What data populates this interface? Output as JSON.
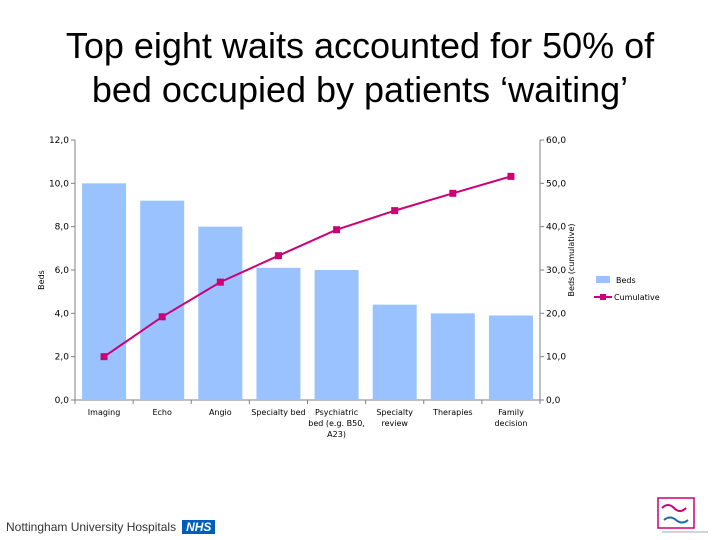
{
  "slide": {
    "title_line1": "Top eight waits accounted for 50% of",
    "title_line2": "bed occupied by patients ‘waiting’"
  },
  "footer": {
    "organisation": "Nottingham University Hospitals",
    "nhs_badge": "NHS"
  },
  "colors": {
    "bars": "#99C2FF",
    "cumulative": "#CC0077",
    "axis": "#808080"
  },
  "chart_data": {
    "type": "bar",
    "categories": [
      [
        "Imaging"
      ],
      [
        "Echo"
      ],
      [
        "Angio"
      ],
      [
        "Specialty bed"
      ],
      [
        "Psychiatric",
        "bed (e.g. B50,",
        "A23)"
      ],
      [
        "Specialty",
        "review"
      ],
      [
        "Therapies"
      ],
      [
        "Family",
        "decision"
      ]
    ],
    "series": [
      {
        "name": "Beds",
        "type": "bar",
        "axis": "left",
        "values": [
          10.0,
          9.2,
          8.0,
          6.1,
          6.0,
          4.4,
          4.0,
          3.9
        ]
      },
      {
        "name": "Cumulative",
        "type": "line",
        "axis": "right",
        "values": [
          10.0,
          19.2,
          27.2,
          33.3,
          39.3,
          43.7,
          47.7,
          51.6
        ]
      }
    ],
    "ylabel": "Beds",
    "ylabel_right": "Beds (cumulative)",
    "ylim": [
      0,
      12
    ],
    "ylim_right": [
      0,
      60
    ],
    "yticks": [
      "0,0",
      "2,0",
      "4,0",
      "6,0",
      "8,0",
      "10,0",
      "12,0"
    ],
    "yticks_right": [
      "0,0",
      "10,0",
      "20,0",
      "30,0",
      "40,0",
      "50,0",
      "60,0"
    ],
    "legend": "right",
    "grid": false
  }
}
